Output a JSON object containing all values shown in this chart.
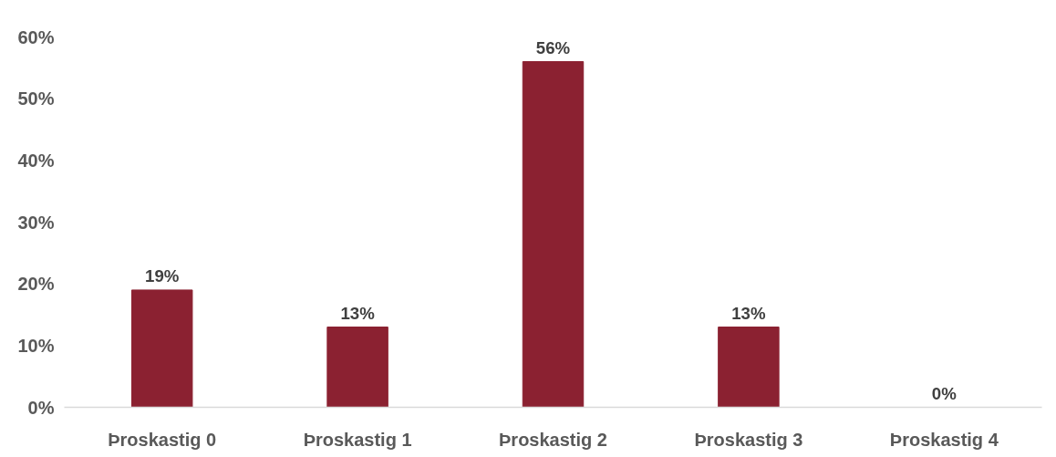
{
  "chart_data": {
    "type": "bar",
    "categories": [
      "Þroskastig 0",
      "Þroskastig 1",
      "Þroskastig 2",
      "Þroskastig 3",
      "Þroskastig 4"
    ],
    "values": [
      19,
      13,
      56,
      13,
      0
    ],
    "value_labels": [
      "19%",
      "13%",
      "56%",
      "13%",
      "0%"
    ],
    "color": "#8b2131",
    "ylim": [
      0,
      60
    ],
    "yticks": [
      {
        "value": 0,
        "label": "0%"
      },
      {
        "value": 10,
        "label": "10%"
      },
      {
        "value": 20,
        "label": "20%"
      },
      {
        "value": 30,
        "label": "30%"
      },
      {
        "value": 40,
        "label": "40%"
      },
      {
        "value": 50,
        "label": "50%"
      },
      {
        "value": 60,
        "label": "60%"
      }
    ],
    "grid": false
  }
}
